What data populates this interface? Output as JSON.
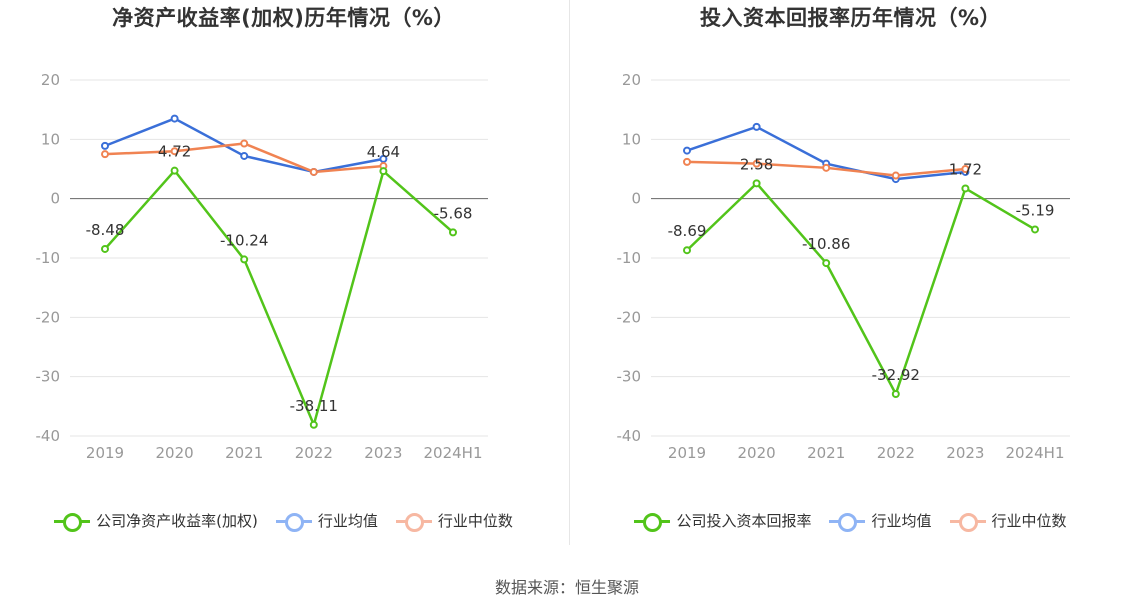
{
  "charts": [
    {
      "title": "净资产收益率(加权)历年情况（%）",
      "legend": [
        {
          "label": "公司净资产收益率(加权)",
          "color": "#52c41a"
        },
        {
          "label": "行业均值",
          "color": "#8fb4f5"
        },
        {
          "label": "行业中位数",
          "color": "#f7b8a2"
        }
      ]
    },
    {
      "title": "投入资本回报率历年情况（%）",
      "legend": [
        {
          "label": "公司投入资本回报率",
          "color": "#52c41a"
        },
        {
          "label": "行业均值",
          "color": "#8fb4f5"
        },
        {
          "label": "行业中位数",
          "color": "#f7b8a2"
        }
      ]
    }
  ],
  "source": "数据来源：恒生聚源",
  "chart_data": [
    {
      "type": "line",
      "title": "净资产收益率(加权)历年情况（%）",
      "categories": [
        "2019",
        "2020",
        "2021",
        "2022",
        "2023",
        "2024H1"
      ],
      "yticks": [
        20,
        10,
        0,
        -10,
        -20,
        -30,
        -40
      ],
      "ylim": [
        -40,
        20
      ],
      "grid": true,
      "legend_position": "bottom",
      "series": [
        {
          "name": "公司净资产收益率(加权)",
          "color": "#52c41a",
          "values": [
            -8.48,
            4.72,
            -10.24,
            -38.11,
            4.64,
            -5.68
          ],
          "labels": true
        },
        {
          "name": "行业均值",
          "color": "#3a6fd8",
          "values": [
            8.9,
            13.5,
            7.2,
            4.5,
            6.7,
            null
          ],
          "labels": false
        },
        {
          "name": "行业中位数",
          "color": "#f08352",
          "values": [
            7.5,
            8.0,
            9.3,
            4.5,
            5.5,
            null
          ],
          "labels": false
        }
      ]
    },
    {
      "type": "line",
      "title": "投入资本回报率历年情况（%）",
      "categories": [
        "2019",
        "2020",
        "2021",
        "2022",
        "2023",
        "2024H1"
      ],
      "yticks": [
        20,
        10,
        0,
        -10,
        -20,
        -30,
        -40
      ],
      "ylim": [
        -40,
        20
      ],
      "grid": true,
      "legend_position": "bottom",
      "series": [
        {
          "name": "公司投入资本回报率",
          "color": "#52c41a",
          "values": [
            -8.69,
            2.58,
            -10.86,
            -32.92,
            1.72,
            -5.19
          ],
          "labels": true
        },
        {
          "name": "行业均值",
          "color": "#3a6fd8",
          "values": [
            8.1,
            12.1,
            5.9,
            3.3,
            4.5,
            null
          ],
          "labels": false
        },
        {
          "name": "行业中位数",
          "color": "#f08352",
          "values": [
            6.2,
            5.9,
            5.2,
            3.9,
            5.0,
            null
          ],
          "labels": false
        }
      ]
    }
  ]
}
